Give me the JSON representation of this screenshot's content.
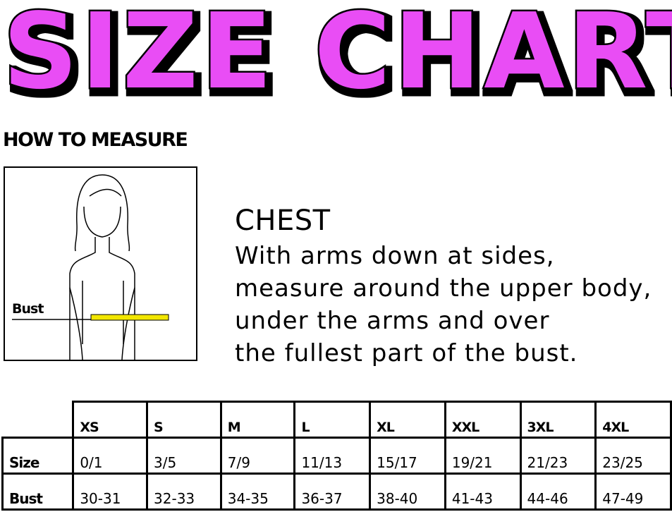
{
  "title": "SIZE CHART",
  "title_color": "#e94ef5",
  "how_to_measure": "HOW TO MEASURE",
  "figure": {
    "bust_label": "Bust",
    "tape_color": "#f2e600"
  },
  "chest": {
    "heading": "CHEST",
    "lines": [
      "With arms down at sides,",
      "measure around the upper body,",
      "under the arms and over",
      "the fullest part of the bust."
    ]
  },
  "table": {
    "columns": [
      "XS",
      "S",
      "M",
      "L",
      "XL",
      "XXL",
      "3XL",
      "4XL"
    ],
    "rows": [
      {
        "label": "Size",
        "values": [
          "0/1",
          "3/5",
          "7/9",
          "11/13",
          "15/17",
          "19/21",
          "21/23",
          "23/25"
        ]
      },
      {
        "label": "Bust",
        "values": [
          "30-31",
          "32-33",
          "34-35",
          "36-37",
          "38-40",
          "41-43",
          "44-46",
          "47-49"
        ]
      }
    ]
  }
}
